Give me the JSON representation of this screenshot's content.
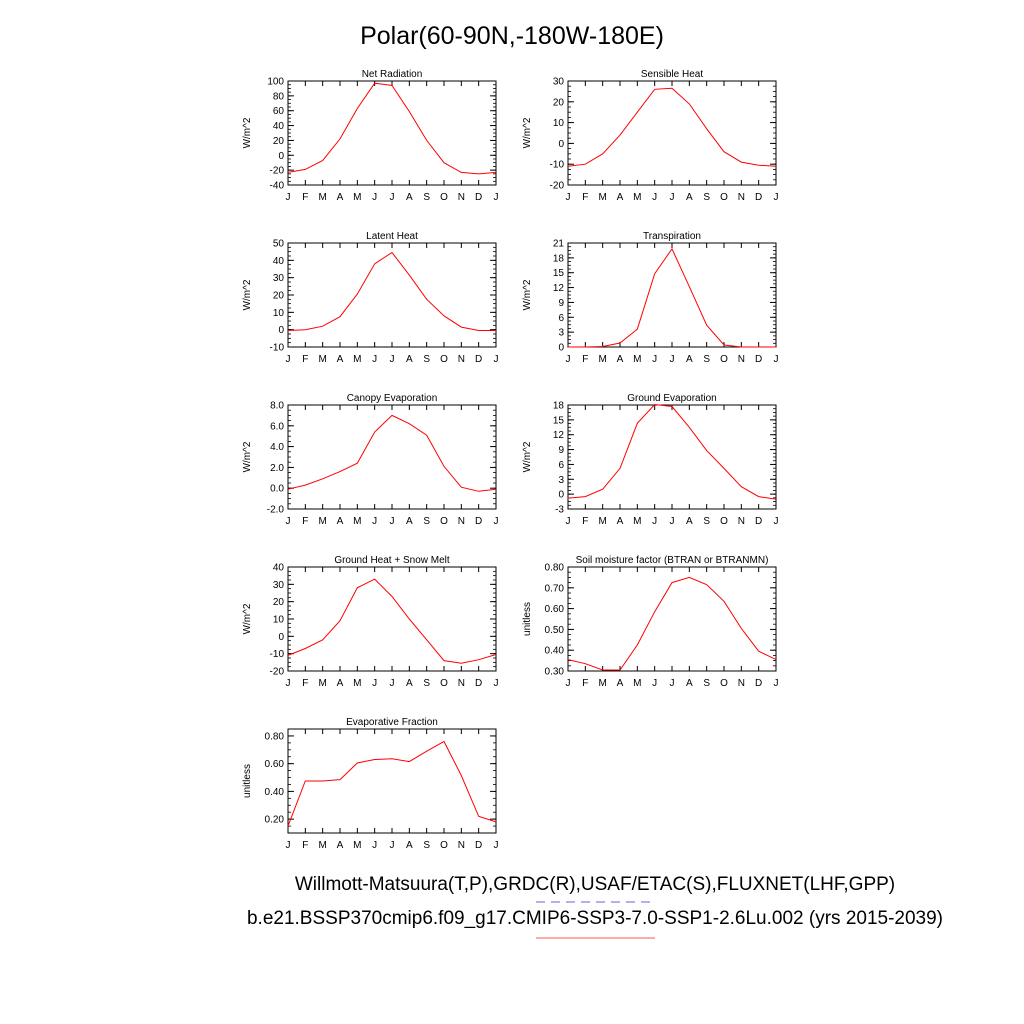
{
  "title": "Polar(60-90N,-180W-180E)",
  "footer": {
    "obs_line": "Willmott-Matsuura(T,P),GRDC(R),USAF/ETAC(S),FLUXNET(LHF,GPP)",
    "case_line": "b.e21.BSSP370cmip6.f09_g17.CMIP6-SSP3-7.0-SSP1-2.6Lu.002 (yrs 2015-2039)"
  },
  "colors": {
    "line": "#ff0000",
    "obs_dash": "#6666cc",
    "case_underline": "#ff7777",
    "axis": "#000000"
  },
  "chart_data": [
    {
      "type": "line",
      "title": "Net Radiation",
      "ylabel": "W/m^2",
      "categories": [
        "J",
        "F",
        "M",
        "A",
        "M",
        "J",
        "J",
        "A",
        "S",
        "O",
        "N",
        "D",
        "J"
      ],
      "ylim": [
        -40,
        100
      ],
      "yticks": [
        -40,
        -20,
        0,
        20,
        40,
        60,
        80,
        100
      ],
      "ytick_labels": [
        "-40",
        "-20",
        "0",
        "20",
        "40",
        "60",
        "80",
        "100"
      ],
      "series": [
        {
          "values": [
            -23,
            -19,
            -7,
            22,
            63,
            97,
            94,
            59,
            20,
            -10,
            -23,
            -25,
            -23
          ]
        }
      ]
    },
    {
      "type": "line",
      "title": "Sensible Heat",
      "ylabel": "W/m^2",
      "categories": [
        "J",
        "F",
        "M",
        "A",
        "M",
        "J",
        "J",
        "A",
        "S",
        "O",
        "N",
        "D",
        "J"
      ],
      "ylim": [
        -20,
        30
      ],
      "yticks": [
        -20,
        -10,
        0,
        10,
        20,
        30
      ],
      "ytick_labels": [
        "-20",
        "-10",
        "0",
        "10",
        "20",
        "30"
      ],
      "series": [
        {
          "values": [
            -11,
            -10,
            -5,
            4,
            15,
            26,
            26.5,
            19,
            7,
            -4,
            -9,
            -10.5,
            -11
          ]
        }
      ]
    },
    {
      "type": "line",
      "title": "Latent Heat",
      "ylabel": "W/m^2",
      "categories": [
        "J",
        "F",
        "M",
        "A",
        "M",
        "J",
        "J",
        "A",
        "S",
        "O",
        "N",
        "D",
        "J"
      ],
      "ylim": [
        -10,
        50
      ],
      "yticks": [
        -10,
        0,
        10,
        20,
        30,
        40,
        50
      ],
      "ytick_labels": [
        "-10",
        "0",
        "10",
        "20",
        "30",
        "40",
        "50"
      ],
      "series": [
        {
          "values": [
            -0.5,
            0,
            2,
            7.5,
            20.5,
            38,
            44.5,
            31.5,
            17.5,
            8,
            1.5,
            -0.5,
            -0.5
          ]
        }
      ]
    },
    {
      "type": "line",
      "title": "Transpiration",
      "ylabel": "W/m^2",
      "categories": [
        "J",
        "F",
        "M",
        "A",
        "M",
        "J",
        "J",
        "A",
        "S",
        "O",
        "N",
        "D",
        "J"
      ],
      "ylim": [
        0,
        21
      ],
      "yticks": [
        0,
        3,
        6,
        9,
        12,
        15,
        18,
        21
      ],
      "ytick_labels": [
        "0",
        "3",
        "6",
        "9",
        "12",
        "15",
        "18",
        "21"
      ],
      "series": [
        {
          "values": [
            0,
            0,
            0.1,
            0.8,
            3.6,
            14.8,
            19.8,
            12.2,
            4.4,
            0.4,
            0,
            0,
            0
          ]
        }
      ]
    },
    {
      "type": "line",
      "title": "Canopy Evaporation",
      "ylabel": "W/m^2",
      "categories": [
        "J",
        "F",
        "M",
        "A",
        "M",
        "J",
        "J",
        "A",
        "S",
        "O",
        "N",
        "D",
        "J"
      ],
      "ylim": [
        -2.0,
        8.0
      ],
      "yticks": [
        -2,
        0,
        2,
        4,
        6,
        8
      ],
      "ytick_labels": [
        "-2.0",
        "0.0",
        "2.0",
        "4.0",
        "6.0",
        "8.0"
      ],
      "series": [
        {
          "values": [
            -0.1,
            0.3,
            0.9,
            1.6,
            2.4,
            5.4,
            7.0,
            6.2,
            5.1,
            2.1,
            0.1,
            -0.3,
            -0.1
          ]
        }
      ]
    },
    {
      "type": "line",
      "title": "Ground Evaporation",
      "ylabel": "W/m^2",
      "categories": [
        "J",
        "F",
        "M",
        "A",
        "M",
        "J",
        "J",
        "A",
        "S",
        "O",
        "N",
        "D",
        "J"
      ],
      "ylim": [
        -3,
        18
      ],
      "yticks": [
        -3,
        0,
        3,
        6,
        9,
        12,
        15,
        18
      ],
      "ytick_labels": [
        "-3",
        "0",
        "3",
        "6",
        "9",
        "12",
        "15",
        "18"
      ],
      "series": [
        {
          "values": [
            -0.8,
            -0.5,
            1,
            5.2,
            14.3,
            18.1,
            17.7,
            13.5,
            8.8,
            5.2,
            1.5,
            -0.5,
            -1
          ]
        }
      ]
    },
    {
      "type": "line",
      "title": "Ground Heat + Snow Melt",
      "ylabel": "W/m^2",
      "categories": [
        "J",
        "F",
        "M",
        "A",
        "M",
        "J",
        "J",
        "A",
        "S",
        "O",
        "N",
        "D",
        "J"
      ],
      "ylim": [
        -20,
        40
      ],
      "yticks": [
        -20,
        -10,
        0,
        10,
        20,
        30,
        40
      ],
      "ytick_labels": [
        "-20",
        "-10",
        "0",
        "10",
        "20",
        "30",
        "40"
      ],
      "series": [
        {
          "values": [
            -11,
            -7,
            -2,
            9,
            28,
            33,
            23,
            10,
            -2,
            -14,
            -15.5,
            -13.5,
            -10.5
          ]
        }
      ]
    },
    {
      "type": "line",
      "title": "Soil moisture factor (BTRAN or BTRANMN)",
      "ylabel": "unitless",
      "categories": [
        "J",
        "F",
        "M",
        "A",
        "M",
        "J",
        "J",
        "A",
        "S",
        "O",
        "N",
        "D",
        "J"
      ],
      "ylim": [
        0.3,
        0.8
      ],
      "yticks": [
        0.3,
        0.4,
        0.5,
        0.6,
        0.7,
        0.8
      ],
      "ytick_labels": [
        "0.30",
        "0.40",
        "0.50",
        "0.60",
        "0.70",
        "0.80"
      ],
      "series": [
        {
          "values": [
            0.355,
            0.335,
            0.305,
            0.305,
            0.425,
            0.585,
            0.725,
            0.75,
            0.715,
            0.635,
            0.505,
            0.395,
            0.355
          ]
        }
      ]
    },
    {
      "type": "line",
      "title": "Evaporative Fraction",
      "ylabel": "unitless",
      "categories": [
        "J",
        "F",
        "M",
        "A",
        "M",
        "J",
        "J",
        "A",
        "S",
        "O",
        "N",
        "D",
        "J"
      ],
      "ylim": [
        0.1,
        0.85
      ],
      "yticks": [
        0.2,
        0.4,
        0.6,
        0.8
      ],
      "ytick_labels": [
        "0.20",
        "0.40",
        "0.60",
        "0.80"
      ],
      "series": [
        {
          "values": [
            0.15,
            0.475,
            0.475,
            0.485,
            0.605,
            0.63,
            0.635,
            0.615,
            0.69,
            0.76,
            0.515,
            0.22,
            0.18
          ]
        }
      ]
    }
  ]
}
